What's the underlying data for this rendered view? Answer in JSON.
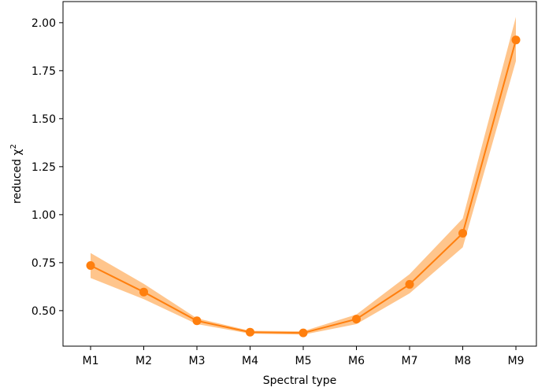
{
  "chart_data": {
    "type": "line",
    "title": "",
    "xlabel": "Spectral type",
    "ylabel": "reduced χ",
    "ylabel_superscript": "2",
    "categories": [
      "M1",
      "M2",
      "M3",
      "M4",
      "M5",
      "M6",
      "M7",
      "M8",
      "M9"
    ],
    "series": [
      {
        "values": [
          0.735,
          0.597,
          0.447,
          0.388,
          0.384,
          0.456,
          0.637,
          0.903,
          1.91
        ],
        "lower": [
          0.67,
          0.56,
          0.43,
          0.38,
          0.375,
          0.43,
          0.59,
          0.83,
          1.8
        ],
        "upper": [
          0.8,
          0.64,
          0.46,
          0.395,
          0.393,
          0.48,
          0.69,
          0.98,
          2.03
        ],
        "color": "#ff7f0e",
        "band_color": "#ffbb78",
        "marker": "circle"
      }
    ],
    "ylim": [
      0.315,
      2.11
    ],
    "yticks": [
      0.5,
      0.75,
      1.0,
      1.25,
      1.5,
      1.75,
      2.0
    ],
    "ytick_labels": [
      "0.50",
      "0.75",
      "1.00",
      "1.25",
      "1.50",
      "1.75",
      "2.00"
    ],
    "grid": false,
    "legend": "none"
  }
}
